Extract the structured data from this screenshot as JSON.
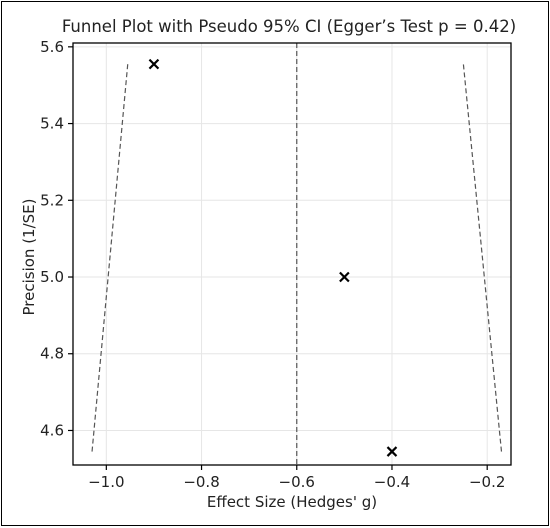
{
  "chart_data": {
    "type": "scatter",
    "title": "Funnel Plot with Pseudo 95% CI (Egger’s Test p = 0.42)",
    "xlabel": "Effect Size (Hedges' g)",
    "ylabel": "Precision (1/SE)",
    "xlim": [
      -1.07,
      -0.15
    ],
    "ylim": [
      4.51,
      5.61
    ],
    "xticks": [
      -1.0,
      -0.8,
      -0.6,
      -0.4,
      -0.2
    ],
    "xtick_labels": [
      "−1.0",
      "−0.8",
      "−0.6",
      "−0.4",
      "−0.2"
    ],
    "yticks": [
      4.6,
      4.8,
      5.0,
      5.2,
      5.4,
      5.6
    ],
    "ytick_labels": [
      "4.6",
      "4.8",
      "5.0",
      "5.2",
      "5.4",
      "5.6"
    ],
    "grid": true,
    "marker": "x",
    "points": [
      {
        "x": -0.9,
        "y": 5.555
      },
      {
        "x": -0.5,
        "y": 5.0
      },
      {
        "x": -0.4,
        "y": 4.545
      }
    ],
    "reference_line": {
      "x": -0.6,
      "style": "dashed"
    },
    "ci_lines": [
      {
        "name": "",
        "points": [
          [
            -1.03,
            4.545
          ],
          [
            -0.955,
            5.555
          ]
        ],
        "style": "dashed"
      },
      {
        "name": "",
        "points": [
          [
            -0.17,
            4.545
          ],
          [
            -0.25,
            5.555
          ]
        ],
        "style": "dashed"
      }
    ],
    "colors": {
      "points": "#000000",
      "lines": "#555555",
      "grid": "#e6e6e6"
    }
  }
}
